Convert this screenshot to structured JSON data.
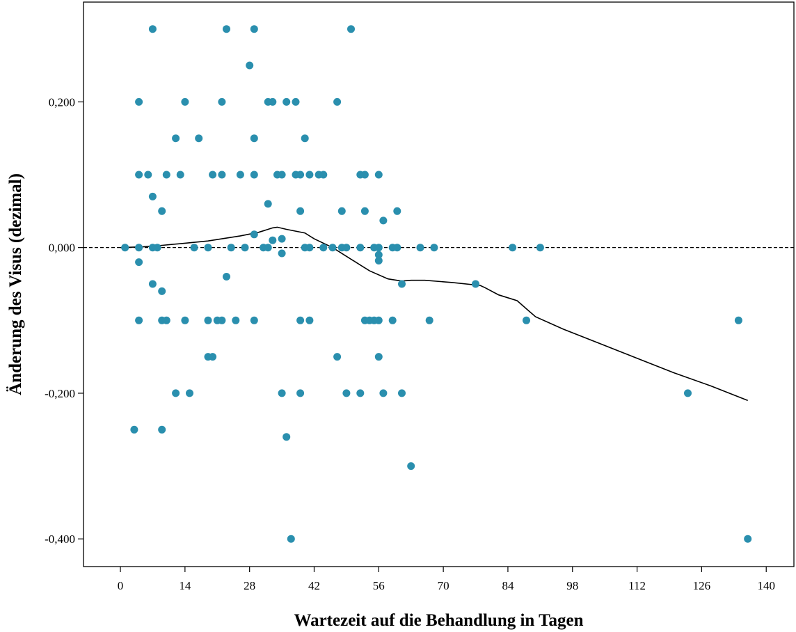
{
  "chart_data": {
    "type": "scatter",
    "title": "",
    "xlabel": "Wartezeit auf die Behandlung in Tagen",
    "ylabel": "Änderung des Visus (dezimal)",
    "xlim": [
      -8,
      146
    ],
    "ylim": [
      -0.438,
      0.337
    ],
    "x_ticks": [
      0,
      14,
      28,
      42,
      56,
      70,
      84,
      98,
      112,
      126,
      140
    ],
    "x_tick_labels": [
      "0",
      "14",
      "28",
      "42",
      "56",
      "70",
      "84",
      "98",
      "112",
      "126",
      "140"
    ],
    "y_ticks": [
      0.2,
      0.0,
      -0.2,
      -0.4
    ],
    "y_tick_labels": [
      "0,200",
      "0,000",
      "-0,200",
      "-0,400"
    ],
    "reference_line_y": 0.0,
    "grid": false,
    "legend": "none",
    "colors": {
      "points": "#2a8fae",
      "trend": "#000000",
      "reference": "#000000"
    },
    "points": [
      [
        7,
        0.3
      ],
      [
        23,
        0.3
      ],
      [
        29,
        0.3
      ],
      [
        50,
        0.3
      ],
      [
        28,
        0.25
      ],
      [
        4,
        0.2
      ],
      [
        14,
        0.2
      ],
      [
        22,
        0.2
      ],
      [
        32,
        0.2
      ],
      [
        33,
        0.2
      ],
      [
        36,
        0.2
      ],
      [
        38,
        0.2
      ],
      [
        47,
        0.2
      ],
      [
        12,
        0.15
      ],
      [
        17,
        0.15
      ],
      [
        29,
        0.15
      ],
      [
        40,
        0.15
      ],
      [
        4,
        0.1
      ],
      [
        6,
        0.1
      ],
      [
        10,
        0.1
      ],
      [
        13,
        0.1
      ],
      [
        20,
        0.1
      ],
      [
        22,
        0.1
      ],
      [
        26,
        0.1
      ],
      [
        29,
        0.1
      ],
      [
        34,
        0.1
      ],
      [
        35,
        0.1
      ],
      [
        38,
        0.1
      ],
      [
        39,
        0.1
      ],
      [
        41,
        0.1
      ],
      [
        43,
        0.1
      ],
      [
        44,
        0.1
      ],
      [
        52,
        0.1
      ],
      [
        53,
        0.1
      ],
      [
        56,
        0.1
      ],
      [
        7,
        0.07
      ],
      [
        32,
        0.06
      ],
      [
        9,
        0.05
      ],
      [
        39,
        0.05
      ],
      [
        48,
        0.05
      ],
      [
        53,
        0.05
      ],
      [
        60,
        0.05
      ],
      [
        57,
        0.037
      ],
      [
        29,
        0.018
      ],
      [
        35,
        0.012
      ],
      [
        33,
        0.01
      ],
      [
        1,
        0.0
      ],
      [
        4,
        0.0
      ],
      [
        7,
        0.0
      ],
      [
        8,
        0.0
      ],
      [
        16,
        0.0
      ],
      [
        19,
        0.0
      ],
      [
        24,
        0.0
      ],
      [
        27,
        0.0
      ],
      [
        31,
        0.0
      ],
      [
        32,
        0.0
      ],
      [
        40,
        0.0
      ],
      [
        41,
        0.0
      ],
      [
        44,
        0.0
      ],
      [
        46,
        0.0
      ],
      [
        48,
        0.0
      ],
      [
        49,
        0.0
      ],
      [
        52,
        0.0
      ],
      [
        55,
        0.0
      ],
      [
        56,
        0.0
      ],
      [
        59,
        0.0
      ],
      [
        60,
        0.0
      ],
      [
        65,
        0.0
      ],
      [
        68,
        0.0
      ],
      [
        85,
        0.0
      ],
      [
        91,
        0.0
      ],
      [
        35,
        -0.008
      ],
      [
        56,
        -0.01
      ],
      [
        56,
        -0.018
      ],
      [
        4,
        -0.02
      ],
      [
        23,
        -0.04
      ],
      [
        7,
        -0.05
      ],
      [
        61,
        -0.05
      ],
      [
        77,
        -0.05
      ],
      [
        9,
        -0.06
      ],
      [
        4,
        -0.1
      ],
      [
        9,
        -0.1
      ],
      [
        10,
        -0.1
      ],
      [
        14,
        -0.1
      ],
      [
        19,
        -0.1
      ],
      [
        21,
        -0.1
      ],
      [
        22,
        -0.1
      ],
      [
        25,
        -0.1
      ],
      [
        29,
        -0.1
      ],
      [
        39,
        -0.1
      ],
      [
        41,
        -0.1
      ],
      [
        53,
        -0.1
      ],
      [
        54,
        -0.1
      ],
      [
        55,
        -0.1
      ],
      [
        56,
        -0.1
      ],
      [
        59,
        -0.1
      ],
      [
        67,
        -0.1
      ],
      [
        88,
        -0.1
      ],
      [
        134,
        -0.1
      ],
      [
        19,
        -0.15
      ],
      [
        20,
        -0.15
      ],
      [
        47,
        -0.15
      ],
      [
        56,
        -0.15
      ],
      [
        12,
        -0.2
      ],
      [
        15,
        -0.2
      ],
      [
        35,
        -0.2
      ],
      [
        39,
        -0.2
      ],
      [
        49,
        -0.2
      ],
      [
        52,
        -0.2
      ],
      [
        57,
        -0.2
      ],
      [
        61,
        -0.2
      ],
      [
        123,
        -0.2
      ],
      [
        3,
        -0.25
      ],
      [
        9,
        -0.25
      ],
      [
        36,
        -0.26
      ],
      [
        63,
        -0.3
      ],
      [
        37,
        -0.4
      ],
      [
        136,
        -0.4
      ]
    ],
    "trend_line": [
      [
        0,
        0.0
      ],
      [
        5,
        0.001
      ],
      [
        9,
        0.003
      ],
      [
        14,
        0.006
      ],
      [
        19,
        0.009
      ],
      [
        22,
        0.012
      ],
      [
        26,
        0.016
      ],
      [
        30,
        0.021
      ],
      [
        33,
        0.027
      ],
      [
        34,
        0.028
      ],
      [
        36,
        0.025
      ],
      [
        40,
        0.02
      ],
      [
        42,
        0.012
      ],
      [
        46,
        0.0
      ],
      [
        50,
        -0.016
      ],
      [
        54,
        -0.032
      ],
      [
        58,
        -0.043
      ],
      [
        61,
        -0.046
      ],
      [
        63,
        -0.045
      ],
      [
        66,
        -0.045
      ],
      [
        72,
        -0.048
      ],
      [
        78,
        -0.052
      ],
      [
        79,
        -0.055
      ],
      [
        82,
        -0.065
      ],
      [
        86,
        -0.073
      ],
      [
        90,
        -0.095
      ],
      [
        96,
        -0.112
      ],
      [
        104,
        -0.132
      ],
      [
        112,
        -0.152
      ],
      [
        120,
        -0.172
      ],
      [
        128,
        -0.19
      ],
      [
        136,
        -0.21
      ]
    ]
  }
}
